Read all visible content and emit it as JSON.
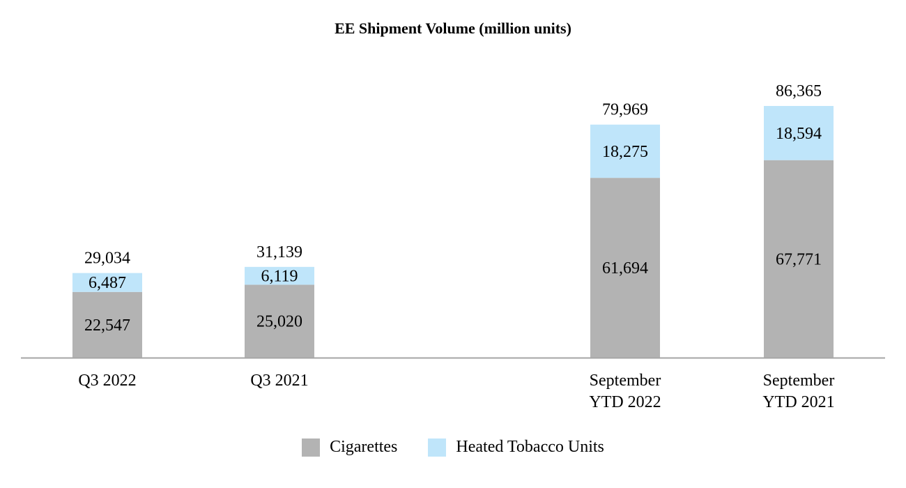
{
  "chart_data": {
    "type": "bar",
    "stacked": true,
    "title": "EE Shipment Volume (million units)",
    "categories": [
      [
        "Q3 2022"
      ],
      [
        "Q3 2021"
      ],
      [
        "September",
        "YTD 2022"
      ],
      [
        "September",
        "YTD 2021"
      ]
    ],
    "series": [
      {
        "name": "Cigarettes",
        "color": "#b3b3b3",
        "values": [
          22547,
          25020,
          61694,
          67771
        ]
      },
      {
        "name": "Heated Tobacco Units",
        "color": "#bfe5fa",
        "values": [
          6487,
          6119,
          18275,
          18594
        ]
      }
    ],
    "totals": [
      29034,
      31139,
      79969,
      86365
    ],
    "value_labels": {
      "Cigarettes": [
        "22,547",
        "25,020",
        "61,694",
        "67,771"
      ],
      "Heated Tobacco Units": [
        "6,487",
        "6,119",
        "18,275",
        "18,594"
      ],
      "totals": [
        "29,034",
        "31,139",
        "79,969",
        "86,365"
      ]
    },
    "ylim": [
      0,
      86365
    ],
    "xlabel": "",
    "ylabel": "",
    "grid": false,
    "legend_position": "bottom-center"
  }
}
